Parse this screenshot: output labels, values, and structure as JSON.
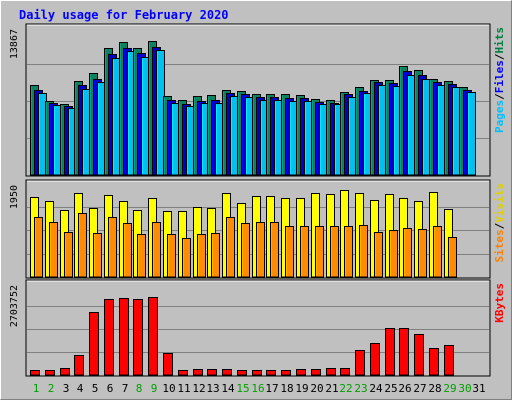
{
  "chart_data": {
    "type": "bar",
    "title": "Daily usage for February 2020",
    "categories": [
      "1",
      "2",
      "3",
      "4",
      "5",
      "6",
      "7",
      "8",
      "9",
      "10",
      "11",
      "12",
      "13",
      "14",
      "15",
      "16",
      "17",
      "18",
      "19",
      "20",
      "21",
      "22",
      "23",
      "24",
      "25",
      "26",
      "27",
      "28",
      "29",
      "30",
      "31"
    ],
    "weekend_days": [
      "1",
      "2",
      "8",
      "9",
      "15",
      "16",
      "22",
      "23",
      "29",
      "30"
    ],
    "panels": [
      {
        "key": "top",
        "scale_label": "13867",
        "ymax": 16150,
        "series": [
          {
            "name": "Hits",
            "color": "#0f8060",
            "values": [
              9800,
              8100,
              7700,
              10300,
              11100,
              13900,
              14500,
              13900,
              14600,
              8600,
              8200,
              8600,
              8700,
              9300,
              9200,
              8800,
              8800,
              8800,
              8700,
              8300,
              8200,
              9100,
              9600,
              10400,
              10400,
              11900,
              11500,
              10500,
              10300,
              9600,
              null
            ]
          },
          {
            "name": "Files",
            "color": "#0000c8",
            "values": [
              9300,
              7900,
              7500,
              9800,
              10500,
              13200,
              13900,
              13300,
              14000,
              8200,
              7800,
              8100,
              8200,
              8900,
              8800,
              8500,
              8500,
              8400,
              8400,
              8000,
              7900,
              8800,
              9200,
              10100,
              10000,
              11300,
              10900,
              10100,
              9900,
              9300,
              null
            ]
          },
          {
            "name": "Pages",
            "color": "#00c0f0",
            "values": [
              8900,
              7600,
              7300,
              9400,
              10100,
              12800,
              13500,
              12900,
              13600,
              7900,
              7500,
              7900,
              7900,
              8600,
              8500,
              8200,
              8200,
              8100,
              8100,
              7700,
              7700,
              8500,
              8900,
              9800,
              9700,
              10900,
              10500,
              9800,
              9600,
              9100,
              null
            ]
          }
        ],
        "legend": [
          "Pages",
          "Files",
          "Hits"
        ]
      },
      {
        "key": "mid",
        "scale_label": "1950",
        "ymax": 2300,
        "series": [
          {
            "name": "Visits",
            "color": "#ffff00",
            "values": [
              1960,
              1850,
              1630,
              2050,
              1690,
              2000,
              1850,
              1640,
              1930,
              1620,
              1610,
              1720,
              1700,
              2050,
              1820,
              1980,
              1990,
              1930,
              1930,
              2050,
              2040,
              2140,
              2050,
              1890,
              2030,
              1930,
              1860,
              2080,
              1660,
              null,
              null
            ]
          },
          {
            "name": "Sites",
            "color": "#ff8c00",
            "values": [
              1480,
              1340,
              1100,
              1570,
              1080,
              1460,
              1310,
              1060,
              1340,
              1040,
              950,
              1060,
              1080,
              1470,
              1320,
              1350,
              1340,
              1250,
              1260,
              1250,
              1250,
              1240,
              1280,
              1090,
              1160,
              1190,
              1170,
              1250,
              990,
              null,
              null
            ]
          }
        ],
        "legend": [
          "Sites",
          "Visits"
        ]
      },
      {
        "key": "bot",
        "scale_label": "2703752",
        "ymax": 3060000,
        "series": [
          {
            "name": "KBytes",
            "color": "#ff0000",
            "values": [
              170000,
              170000,
              240000,
              680000,
              2080000,
              2530000,
              2570000,
              2530000,
              2580000,
              720000,
              160000,
              210000,
              210000,
              210000,
              170000,
              170000,
              170000,
              170000,
              210000,
              210000,
              220000,
              220000,
              830000,
              1050000,
              1560000,
              1560000,
              1380000,
              910000,
              990000,
              null,
              null
            ]
          }
        ],
        "legend": [
          "KBytes"
        ]
      }
    ],
    "label_colors": {
      "title": "#0000ff",
      "Hits": "#008040",
      "Files": "#0000ff",
      "Pages": "#00c0ff",
      "Visits": "#e0d000",
      "Sites": "#ff8000",
      "KBytes": "#ff0000",
      "weekday": "#000000",
      "weekend": "#00a000",
      "separator": "#000000"
    }
  }
}
